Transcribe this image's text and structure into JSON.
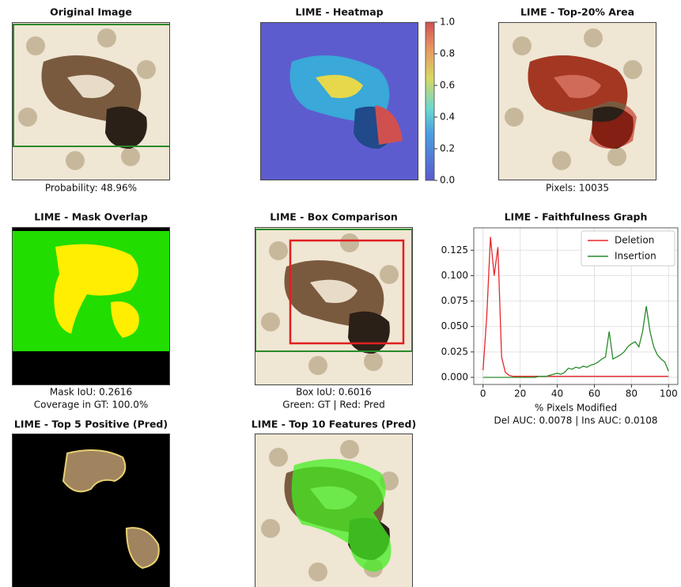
{
  "panels": [
    {
      "title": "Original Image",
      "caption": [
        "Probability: 48.96%"
      ]
    },
    {
      "title": "LIME - Heatmap"
    },
    {
      "title": "LIME - Top-20% Area",
      "caption": [
        "Pixels: 10035"
      ]
    },
    {
      "title": "LIME - Mask Overlap",
      "caption": [
        "Mask IoU: 0.2616",
        "Coverage in GT: 100.0%"
      ]
    },
    {
      "title": "LIME - Box Comparison",
      "caption": [
        "Box IoU: 0.6016",
        "Green: GT | Red: Pred"
      ]
    },
    {
      "title": "LIME - Top 5 Positive (Pred)"
    },
    {
      "title": "LIME - Top 10 Features (Pred)"
    }
  ],
  "colorbar": {
    "ylim": [
      0,
      1
    ],
    "yticks": [
      {
        "value": 0,
        "label": "0.0"
      },
      {
        "value": 0.2,
        "label": "0.2"
      },
      {
        "value": 0.4,
        "label": "0.4"
      },
      {
        "value": 0.6,
        "label": "0.6"
      },
      {
        "value": 0.8,
        "label": "0.8"
      },
      {
        "value": 1,
        "label": "1.0"
      }
    ]
  },
  "chart_data": {
    "type": "line",
    "title": "LIME - Faithfulness Graph",
    "x_label": "% Pixels Modified",
    "caption": "Del AUC: 0.0078 | Ins AUC: 0.0108",
    "x": [
      0,
      2,
      4,
      6,
      8,
      10,
      12,
      14,
      16,
      18,
      20,
      22,
      24,
      26,
      28,
      30,
      32,
      34,
      36,
      38,
      40,
      42,
      44,
      46,
      48,
      50,
      52,
      54,
      56,
      58,
      60,
      62,
      64,
      66,
      68,
      70,
      72,
      74,
      76,
      78,
      80,
      82,
      84,
      86,
      88,
      90,
      92,
      94,
      96,
      98,
      100
    ],
    "series": [
      {
        "name": "Deletion",
        "color": "#e8262a",
        "values": [
          0.007,
          0.06,
          0.138,
          0.1,
          0.128,
          0.02,
          0.005,
          0.002,
          0.001,
          0.001,
          0.001,
          0.001,
          0.001,
          0.001,
          0.001,
          0.001,
          0.001,
          0.001,
          0.001,
          0.001,
          0.001,
          0.001,
          0.001,
          0.001,
          0.001,
          0.001,
          0.001,
          0.001,
          0.001,
          0.001,
          0.001,
          0.001,
          0.001,
          0.001,
          0.001,
          0.001,
          0.001,
          0.001,
          0.001,
          0.001,
          0.001,
          0.001,
          0.001,
          0.001,
          0.001,
          0.001,
          0.001,
          0.001,
          0.001,
          0.001,
          0.001
        ]
      },
      {
        "name": "Insertion",
        "color": "#2a8a2a",
        "values": [
          0,
          0,
          0,
          0,
          0,
          0,
          0,
          0,
          0,
          0,
          0,
          0,
          0,
          0,
          0,
          0.001,
          0.001,
          0.001,
          0.002,
          0.003,
          0.004,
          0.003,
          0.005,
          0.009,
          0.008,
          0.01,
          0.009,
          0.011,
          0.01,
          0.012,
          0.013,
          0.015,
          0.018,
          0.02,
          0.045,
          0.018,
          0.02,
          0.022,
          0.025,
          0.03,
          0.033,
          0.035,
          0.03,
          0.045,
          0.07,
          0.045,
          0.03,
          0.022,
          0.018,
          0.015,
          0.006
        ]
      }
    ],
    "xlim": [
      -5,
      105
    ],
    "ylim": [
      -0.007,
      0.147
    ],
    "xticks": [
      0,
      20,
      40,
      60,
      80,
      100
    ],
    "yticks": [
      {
        "value": 0,
        "label": "0.000"
      },
      {
        "value": 0.025,
        "label": "0.025"
      },
      {
        "value": 0.05,
        "label": "0.050"
      },
      {
        "value": 0.075,
        "label": "0.075"
      },
      {
        "value": 0.1,
        "label": "0.100"
      },
      {
        "value": 0.125,
        "label": "0.125"
      }
    ],
    "grid": true,
    "legend": "upper right"
  }
}
